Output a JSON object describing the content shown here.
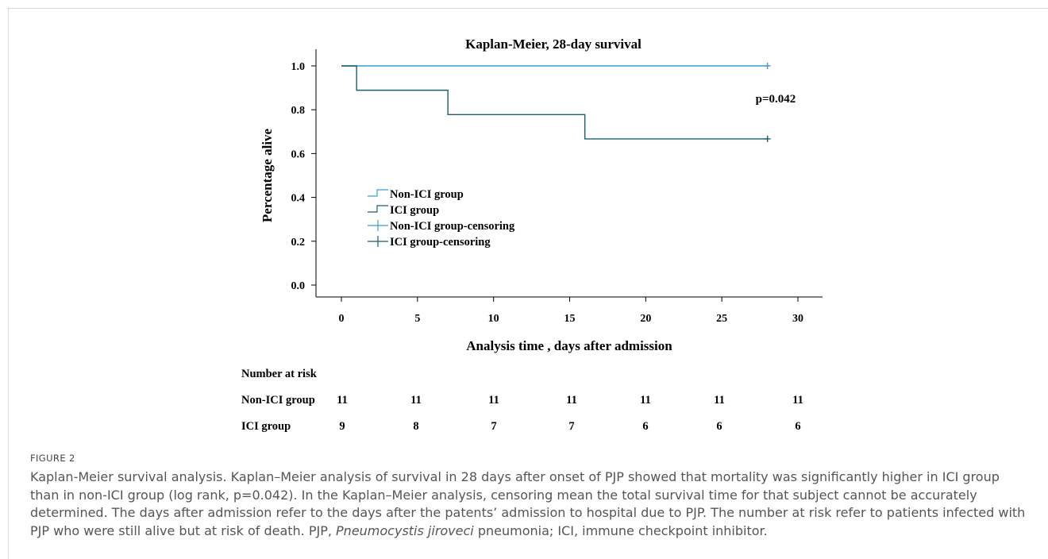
{
  "chart_data": {
    "type": "line",
    "title": "Kaplan-Meier, 28-day survival",
    "xlabel": "Analysis time , days after admission",
    "ylabel": "Percentage alive",
    "xlim": [
      0,
      30
    ],
    "ylim": [
      0,
      1.0
    ],
    "x_ticks": [
      "0",
      "5",
      "10",
      "15",
      "20",
      "25",
      "30"
    ],
    "y_ticks": [
      "0.0",
      "0.2",
      "0.4",
      "0.6",
      "0.8",
      "1.0"
    ],
    "annotation": "p=0.042",
    "series": [
      {
        "name": "Non-ICI group",
        "color": "#3aa0d2",
        "x": [
          0,
          28
        ],
        "y": [
          1.0,
          1.0
        ],
        "step": true
      },
      {
        "name": "ICI group",
        "color": "#1b5e6e",
        "x": [
          0,
          1,
          7,
          16,
          28
        ],
        "y": [
          1.0,
          0.889,
          0.778,
          0.667,
          0.667
        ],
        "step": true
      }
    ],
    "censoring": [
      {
        "name": "Non-ICI group-censoring",
        "color": "#3aa0d2",
        "x": 28,
        "y": 1.0
      },
      {
        "name": "ICI group-censoring",
        "color": "#1b5e6e",
        "x": 28,
        "y": 0.667
      }
    ],
    "legend": [
      "Non-ICI group",
      "ICI group",
      "Non-ICI group-censoring",
      "ICI group-censoring"
    ],
    "legend_position": "lower-left",
    "grid": false,
    "risk_table": {
      "title": "Number at risk",
      "rows": [
        {
          "label": "Non-ICI group",
          "values": [
            11,
            11,
            11,
            11,
            11,
            11,
            11
          ]
        },
        {
          "label": "ICI group",
          "values": [
            9,
            8,
            7,
            7,
            6,
            6,
            6
          ]
        }
      ]
    }
  },
  "caption": {
    "label": "FIGURE 2",
    "text_before_italic": "Kaplan-Meier survival analysis. Kaplan–Meier analysis of survival in 28 days after onset of PJP showed that mortality was significantly higher in ICI group than in non-ICI group (log rank, p=0.042). In the Kaplan–Meier analysis, censoring mean the total survival time for that subject cannot be accurately determined. The days after admission refer to the days after the patents’ admission to hospital due to PJP. The number at risk refer to patients infected with PJP who were still alive but at risk of death. PJP, ",
    "italic": "Pneumocystis jiroveci",
    "text_after_italic": " pneumonia; ICI, immune checkpoint inhibitor."
  }
}
